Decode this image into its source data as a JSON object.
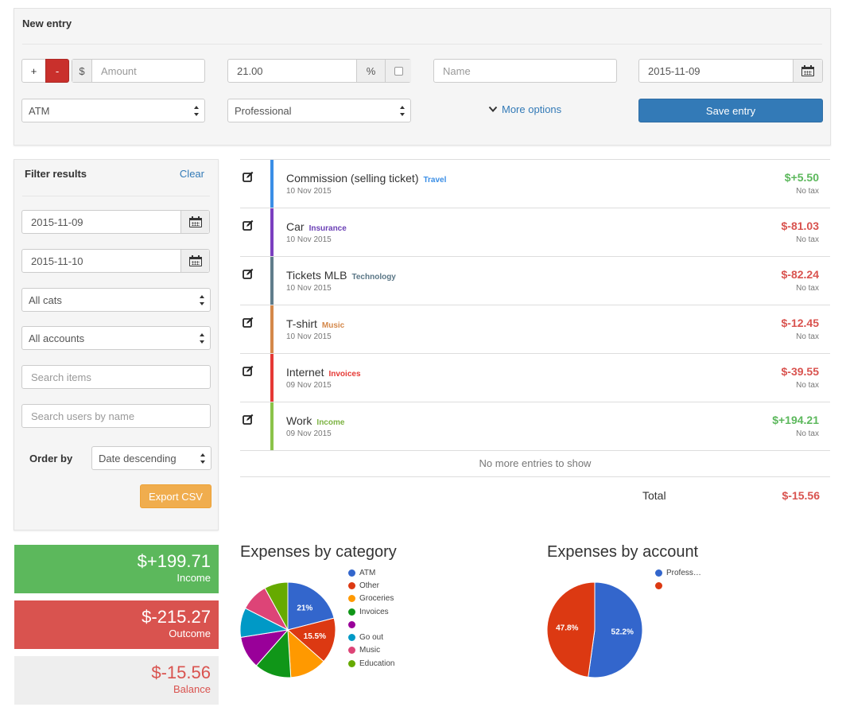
{
  "new_entry": {
    "title": "New entry",
    "plus_label": "+",
    "minus_label": "-",
    "currency_symbol": "$",
    "amount_placeholder": "Amount",
    "tax_value": "21.00",
    "percent_label": "%",
    "name_placeholder": "Name",
    "date_value": "2015-11-09",
    "account_selected": "ATM",
    "category_selected": "Professional",
    "more_options_label": "More options",
    "save_label": "Save entry"
  },
  "filter": {
    "title": "Filter results",
    "clear_label": "Clear",
    "date_from": "2015-11-09",
    "date_to": "2015-11-10",
    "category_selected": "All cats",
    "account_selected": "All accounts",
    "search_items_placeholder": "Search items",
    "search_users_placeholder": "Search users by name",
    "order_by_label": "Order by",
    "order_selected": "Date descending",
    "export_label": "Export CSV"
  },
  "entries": [
    {
      "name": "Commission (selling ticket)",
      "category": "Travel",
      "category_color": "#3a8ee6",
      "bar_color": "#3a8ee6",
      "date": "10 Nov 2015",
      "amount": "$+5.50",
      "amount_color": "#5cb85c",
      "tax": "No tax"
    },
    {
      "name": "Car",
      "category": "Insurance",
      "category_color": "#6a3fb5",
      "bar_color": "#7b3fc0",
      "date": "10 Nov 2015",
      "amount": "$-81.03",
      "amount_color": "#d9534f",
      "tax": "No tax"
    },
    {
      "name": "Tickets MLB",
      "category": "Technology",
      "category_color": "#5a7686",
      "bar_color": "#607d8b",
      "date": "10 Nov 2015",
      "amount": "$-82.24",
      "amount_color": "#d9534f",
      "tax": "No tax"
    },
    {
      "name": "T-shirt",
      "category": "Music",
      "category_color": "#d4884a",
      "bar_color": "#d4884a",
      "date": "10 Nov 2015",
      "amount": "$-12.45",
      "amount_color": "#d9534f",
      "tax": "No tax"
    },
    {
      "name": "Internet",
      "category": "Invoices",
      "category_color": "#e53935",
      "bar_color": "#e53935",
      "date": "09 Nov 2015",
      "amount": "$-39.55",
      "amount_color": "#d9534f",
      "tax": "No tax"
    },
    {
      "name": "Work",
      "category": "Income",
      "category_color": "#7cb342",
      "bar_color": "#8bc34a",
      "date": "09 Nov 2015",
      "amount": "$+194.21",
      "amount_color": "#5cb85c",
      "tax": "No tax"
    }
  ],
  "list_footer": {
    "no_more": "No more entries to show",
    "total_label": "Total",
    "total_value": "$-15.56"
  },
  "summary": {
    "income_value": "$+199.71",
    "income_label": "Income",
    "outcome_value": "$-215.27",
    "outcome_label": "Outcome",
    "balance_value": "$-15.56",
    "balance_label": "Balance"
  },
  "chart_data": [
    {
      "type": "pie",
      "title": "Expenses by category",
      "categories": [
        "ATM",
        "Other",
        "Groceries",
        "Invoices",
        "",
        "Go out",
        "Music",
        "Education"
      ],
      "values": [
        21,
        15.5,
        12.5,
        12.5,
        11.0,
        10.0,
        9.5,
        8.0
      ],
      "slice_labels": [
        "21%",
        "15.5%",
        "",
        "",
        "",
        "",
        "",
        ""
      ],
      "colors": [
        "#3366cc",
        "#dc3912",
        "#ff9900",
        "#109618",
        "#990099",
        "#0099c6",
        "#dd4477",
        "#66aa00"
      ],
      "legend": "right"
    },
    {
      "type": "pie",
      "title": "Expenses by account",
      "categories": [
        "Profess…",
        ""
      ],
      "values": [
        52.2,
        47.8
      ],
      "slice_labels": [
        "52.2%",
        "47.8%"
      ],
      "colors": [
        "#3366cc",
        "#dc3912"
      ],
      "legend": "right"
    }
  ]
}
